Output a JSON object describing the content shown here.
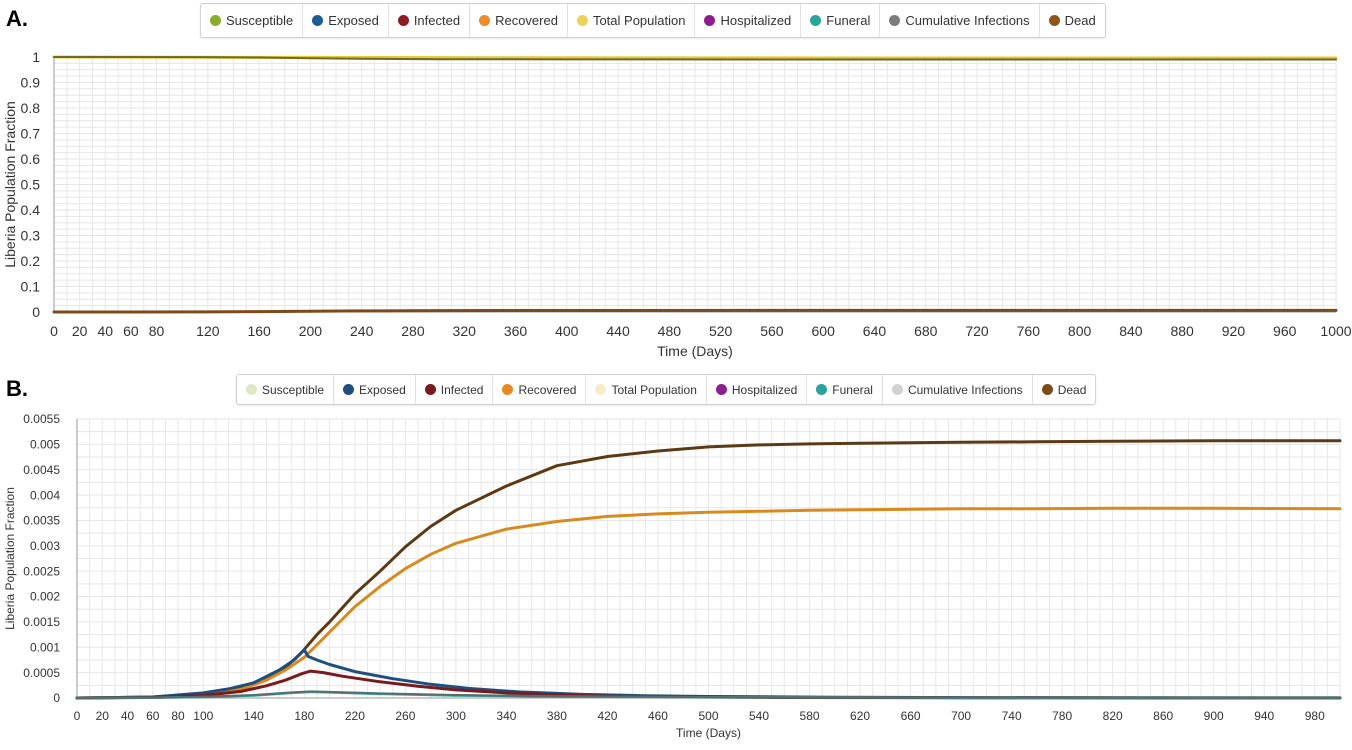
{
  "panels": [
    {
      "label": "A."
    },
    {
      "label": "B."
    }
  ],
  "legend_items": [
    {
      "label": "Susceptible",
      "color_a": "#8aac2c",
      "color_b": "#dfe7c2"
    },
    {
      "label": "Exposed",
      "color_a": "#1f5b94",
      "color_b": "#1f4f7e"
    },
    {
      "label": "Infected",
      "color_a": "#8b1c24",
      "color_b": "#7a1a1f"
    },
    {
      "label": "Recovered",
      "color_a": "#ef8b2b",
      "color_b": "#e8891f"
    },
    {
      "label": "Total Population",
      "color_a": "#efd15a",
      "color_b": "#f7ecc8"
    },
    {
      "label": "Hospitalized",
      "color_a": "#8c1f8c",
      "color_b": "#8c1f8c"
    },
    {
      "label": "Funeral",
      "color_a": "#2aa39b",
      "color_b": "#2aa39b"
    },
    {
      "label": "Cumulative Infections",
      "color_a": "#7b7b7b",
      "color_b": "#d2d2d2"
    },
    {
      "label": "Dead",
      "color_a": "#8f5419",
      "color_b": "#7d4a1a"
    }
  ],
  "chart_data": [
    {
      "type": "line",
      "xlabel": "Time (Days)",
      "ylabel": "Liberia Population Fraction",
      "xlim": [
        0,
        1000
      ],
      "ylim": [
        0,
        1
      ],
      "x_ticks": [
        0,
        20,
        40,
        60,
        80,
        120,
        160,
        200,
        240,
        280,
        320,
        360,
        400,
        440,
        480,
        520,
        560,
        600,
        640,
        680,
        720,
        760,
        800,
        840,
        880,
        920,
        960,
        "1000"
      ],
      "y_ticks": [
        "0",
        "0.1",
        "0.2",
        "0.3",
        "0.4",
        "0.5",
        "0.6",
        "0.7",
        "0.8",
        "0.9",
        "1"
      ],
      "grid": true,
      "legend_position": "top",
      "series": [
        {
          "name": "Total Population",
          "color": "#e8c832",
          "width": 3,
          "x": [
            0,
            180,
            400,
            700,
            1000
          ],
          "y": [
            1,
            0.9985,
            0.997,
            0.9962,
            0.996
          ]
        },
        {
          "name": "Susceptible",
          "color": "#6d6a2a",
          "width": 2,
          "x": [
            0,
            120,
            160,
            180,
            200,
            240,
            300,
            400,
            600,
            1000
          ],
          "y": [
            1,
            0.9995,
            0.998,
            0.9965,
            0.995,
            0.993,
            0.9915,
            0.9906,
            0.9903,
            0.9902
          ]
        },
        {
          "name": "Dead",
          "color": "#7d4a1a",
          "width": 3,
          "x": [
            0,
            120,
            160,
            200,
            240,
            300,
            400,
            600,
            1000
          ],
          "y": [
            0,
            0.0005,
            0.0015,
            0.003,
            0.0045,
            0.0055,
            0.006,
            0.0062,
            0.0062
          ]
        }
      ]
    },
    {
      "type": "line",
      "xlabel": "Time (Days)",
      "ylabel": "Liberia Population Fraction",
      "xlim": [
        0,
        1000
      ],
      "ylim": [
        0,
        0.0055
      ],
      "x_ticks": [
        0,
        20,
        40,
        60,
        80,
        100,
        140,
        180,
        220,
        260,
        300,
        340,
        380,
        420,
        460,
        500,
        540,
        580,
        620,
        660,
        700,
        740,
        780,
        820,
        860,
        900,
        940,
        980
      ],
      "y_ticks": [
        "0",
        "0.0005",
        "0.001",
        "0.0015",
        "0.002",
        "0.0025",
        "0.003",
        "0.0035",
        "0.004",
        "0.0045",
        "0.005",
        "0.0055"
      ],
      "grid": true,
      "legend_position": "top",
      "series": [
        {
          "name": "Dead",
          "color": "#5c3a14",
          "width": 3,
          "x": [
            0,
            60,
            100,
            130,
            150,
            165,
            178,
            190,
            200,
            220,
            240,
            260,
            280,
            300,
            340,
            380,
            420,
            460,
            500,
            540,
            580,
            620,
            660,
            700,
            760,
            820,
            900,
            1000
          ],
          "y": [
            0,
            2e-05,
            7e-05,
            0.0002,
            0.0004,
            0.0006,
            0.0009,
            0.00125,
            0.0015,
            0.00205,
            0.0025,
            0.00298,
            0.00338,
            0.0037,
            0.00418,
            0.00458,
            0.00476,
            0.00487,
            0.00495,
            0.00499,
            0.00501,
            0.00502,
            0.00503,
            0.00504,
            0.00505,
            0.00506,
            0.00507,
            0.00507
          ]
        },
        {
          "name": "Recovered",
          "color": "#d98a1e",
          "width": 3,
          "x": [
            0,
            60,
            100,
            130,
            150,
            165,
            180,
            200,
            220,
            240,
            260,
            280,
            300,
            340,
            380,
            420,
            460,
            500,
            540,
            580,
            620,
            660,
            700,
            760,
            820,
            900,
            1000
          ],
          "y": [
            0,
            2e-05,
            6e-05,
            0.00017,
            0.00035,
            0.00055,
            0.0008,
            0.0013,
            0.0018,
            0.0022,
            0.00255,
            0.00283,
            0.00305,
            0.00333,
            0.00348,
            0.00358,
            0.00363,
            0.00366,
            0.00368,
            0.0037,
            0.00371,
            0.00372,
            0.00373,
            0.00373,
            0.00374,
            0.00374,
            0.00373
          ]
        },
        {
          "name": "Exposed",
          "color": "#1f4f7e",
          "width": 3,
          "x": [
            0,
            60,
            100,
            120,
            140,
            160,
            172,
            180,
            183,
            190,
            200,
            220,
            250,
            280,
            310,
            350,
            400,
            450,
            500,
            600,
            700,
            800,
            1000
          ],
          "y": [
            0,
            2e-05,
            0.0001,
            0.00018,
            0.0003,
            0.00055,
            0.00075,
            0.00095,
            0.00082,
            0.00075,
            0.00066,
            0.00052,
            0.00038,
            0.00027,
            0.00019,
            0.00012,
            7e-05,
            4.5e-05,
            3e-05,
            1.5e-05,
            8e-06,
            4e-06,
            2e-06
          ]
        },
        {
          "name": "Infected",
          "color": "#7a1a1f",
          "width": 3,
          "x": [
            0,
            60,
            100,
            130,
            150,
            165,
            178,
            185,
            195,
            210,
            240,
            270,
            300,
            340,
            380,
            420,
            480,
            560,
            700,
            1000
          ],
          "y": [
            0,
            1e-05,
            5e-05,
            0.00013,
            0.00024,
            0.00035,
            0.00048,
            0.00053,
            0.0005,
            0.00043,
            0.00032,
            0.00023,
            0.00016,
            0.0001,
            6e-05,
            3.5e-05,
            2e-05,
            1e-05,
            5e-06,
            2e-06
          ]
        },
        {
          "name": "Funeral",
          "color": "#2aa39b",
          "width": 2.5,
          "x": [
            0,
            60,
            100,
            140,
            170,
            185,
            200,
            240,
            300,
            380,
            500,
            700,
            1000
          ],
          "y": [
            0,
            5e-06,
            2e-05,
            5e-05,
            0.0001,
            0.00012,
            0.00011,
            8e-05,
            5e-05,
            3e-05,
            1.5e-05,
            6e-06,
            2e-06
          ]
        },
        {
          "name": "Hospitalized",
          "color": "#5b6b6a",
          "width": 2,
          "x": [
            0,
            60,
            100,
            140,
            170,
            185,
            200,
            240,
            300,
            380,
            500,
            700,
            1000
          ],
          "y": [
            0,
            6e-06,
            2.5e-05,
            6e-05,
            0.00011,
            0.00013,
            0.00012,
            9e-05,
            6e-05,
            3.5e-05,
            1.8e-05,
            7e-06,
            2e-06
          ]
        }
      ]
    }
  ]
}
